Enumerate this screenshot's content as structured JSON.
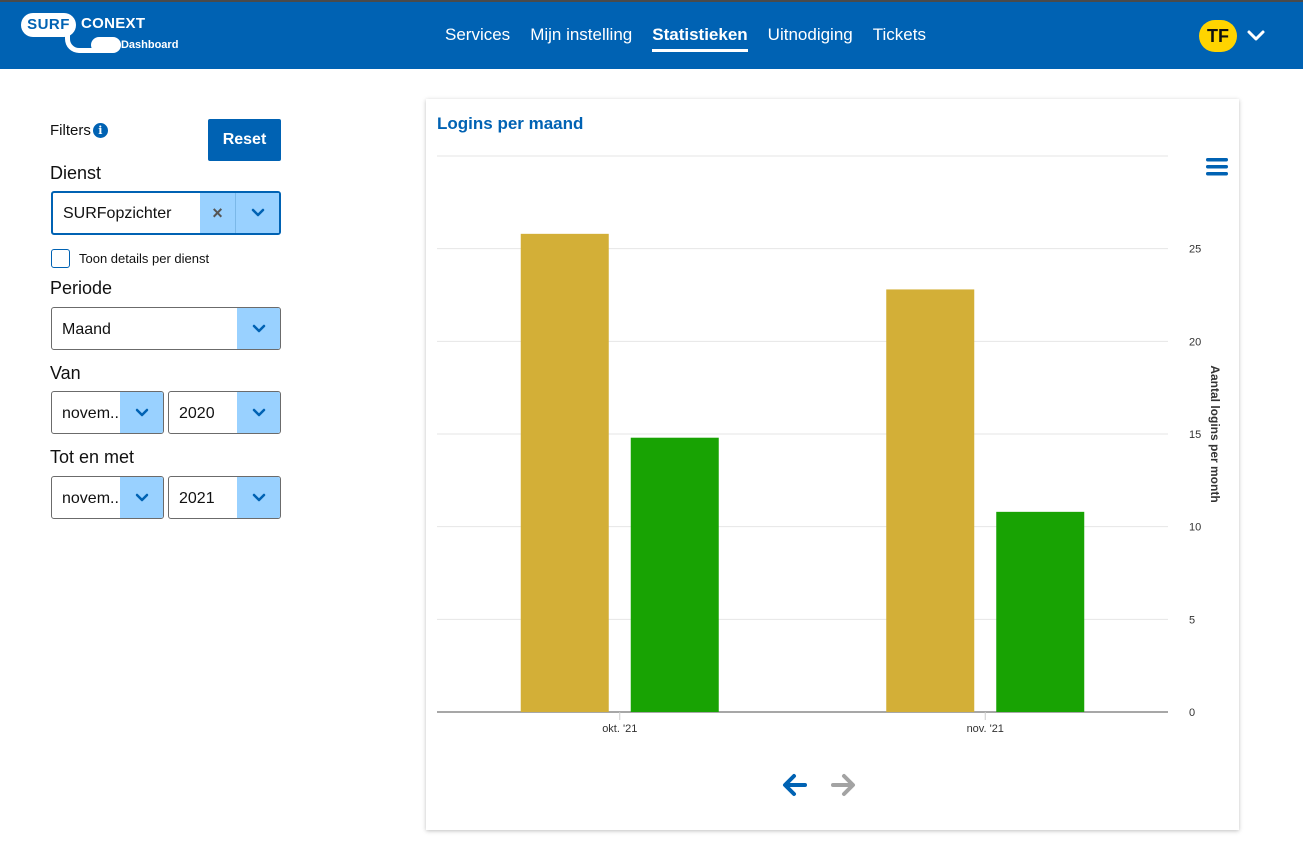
{
  "header": {
    "logo": {
      "surf": "SURF",
      "conext": "CONEXT",
      "subtitle": "IdP Dashboard"
    },
    "nav": [
      {
        "label": "Services",
        "active": false
      },
      {
        "label": "Mijn instelling",
        "active": false
      },
      {
        "label": "Statistieken",
        "active": true
      },
      {
        "label": "Uitnodiging",
        "active": false
      },
      {
        "label": "Tickets",
        "active": false
      }
    ],
    "user_initials": "TF",
    "brand_color": "#0062b3",
    "avatar_color": "#ffd400"
  },
  "sidebar": {
    "filters_label": "Filters",
    "reset_label": "Reset",
    "dienst_label": "Dienst",
    "dienst_value": "SURFopzichter",
    "show_details_label": "Toon details per dienst",
    "periode_label": "Periode",
    "periode_value": "Maand",
    "van_label": "Van",
    "van_month": "novem...",
    "van_year": "2020",
    "tot_label": "Tot en met",
    "tot_month": "novem...",
    "tot_year": "2021"
  },
  "chart": {
    "title": "Logins per maand",
    "chart_data": {
      "type": "bar",
      "categories": [
        "okt. '21",
        "nov. '21"
      ],
      "series": [
        {
          "values": [
            25.8,
            22.8
          ],
          "color": "#d3af37"
        },
        {
          "values": [
            14.8,
            10.8
          ],
          "color": "#18a303"
        }
      ],
      "ylabel": "Aantal logins per month",
      "yticks": [
        0,
        5,
        10,
        15,
        20,
        25
      ],
      "ylim": [
        0,
        30
      ],
      "y_axis_side": "right",
      "grid": true
    }
  },
  "icons": {
    "info": "info-icon",
    "chevron": "chevron-down-icon",
    "clear": "clear-icon",
    "menu": "hamburger-menu-icon",
    "prev": "arrow-left-icon",
    "next": "arrow-right-icon"
  }
}
